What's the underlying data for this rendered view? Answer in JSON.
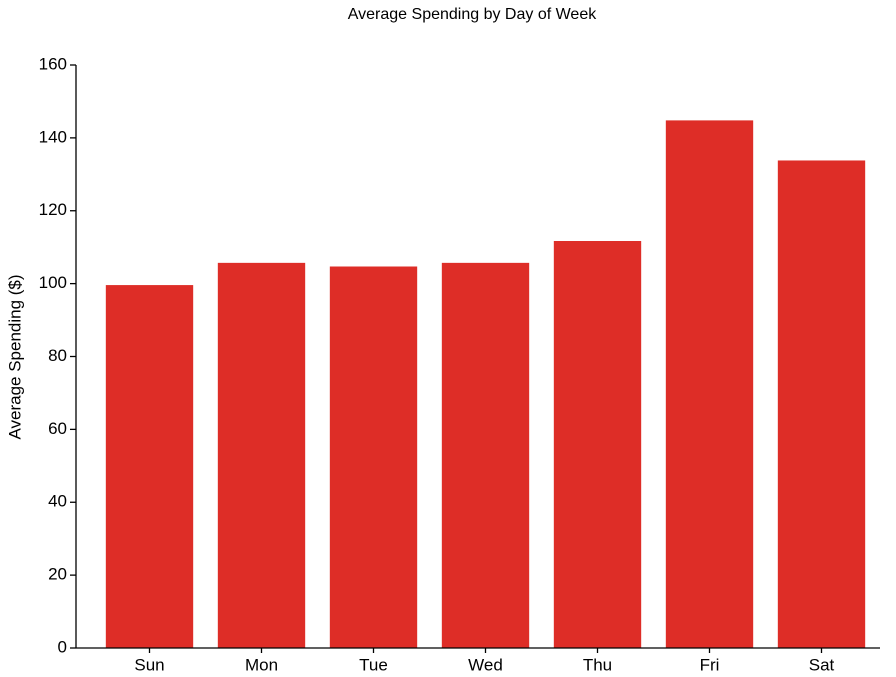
{
  "chart_data": {
    "type": "bar",
    "title": "Average Spending by Day of Week",
    "y_label": "Average Spending ($)",
    "categories": [
      "Sun",
      "Mon",
      "Tue",
      "Wed",
      "Thu",
      "Fri",
      "Sat"
    ],
    "values": [
      99.6,
      105.7,
      104.7,
      105.7,
      111.7,
      144.8,
      133.8
    ],
    "color": "#de2d27",
    "ylim": [
      0,
      160
    ],
    "yticks": [
      0,
      20,
      40,
      60,
      80,
      100,
      120,
      140,
      160
    ],
    "grid": false
  }
}
